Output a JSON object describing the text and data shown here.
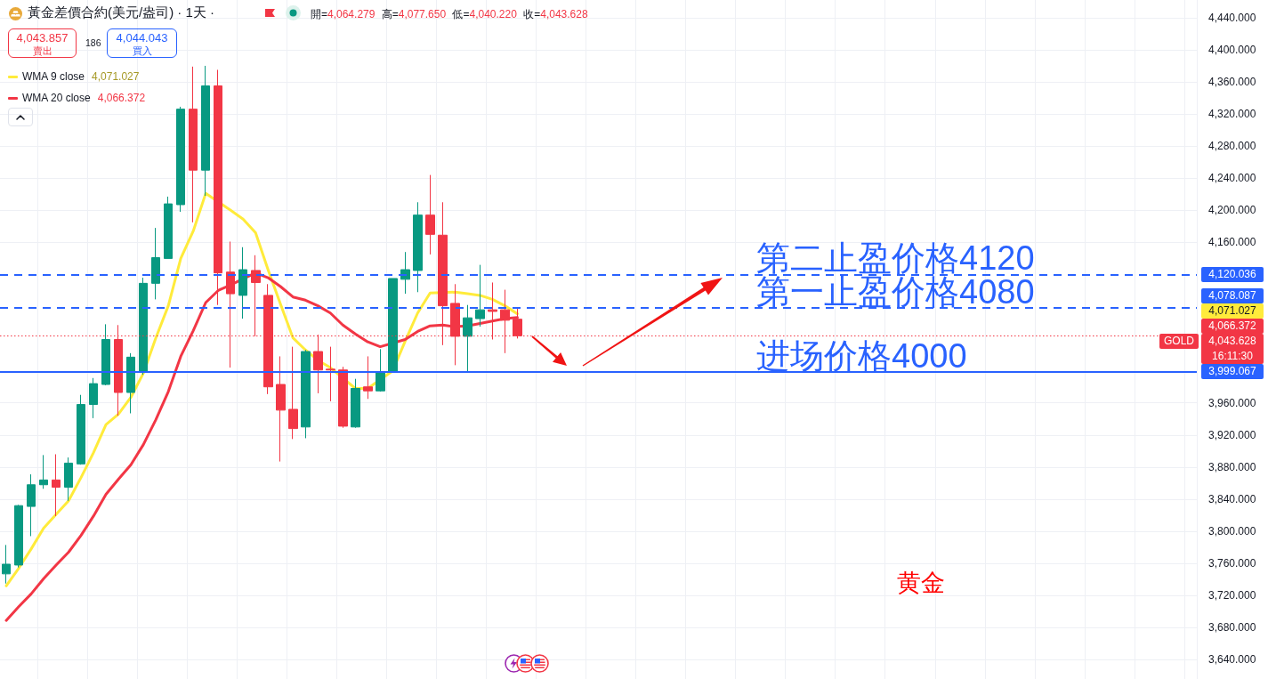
{
  "chart_data": {
    "type": "candlestick",
    "title": "黃金差價合約(美元/盎司) · 1天 ·",
    "categories": [
      null,
      null,
      null,
      null,
      null,
      null,
      null,
      null,
      null,
      null,
      null,
      null,
      null,
      null,
      null,
      null,
      null,
      null,
      null,
      null,
      null,
      null,
      null,
      null,
      null,
      null,
      null,
      null,
      null,
      null,
      null,
      null,
      null,
      null,
      null,
      null,
      null,
      null,
      null,
      null,
      null,
      null,
      null,
      null,
      null,
      null,
      null,
      null,
      null,
      null,
      null,
      null,
      null,
      null,
      null,
      null,
      null,
      null,
      null,
      null,
      null,
      null,
      null,
      null,
      null,
      null,
      null,
      null,
      null,
      null,
      null,
      null,
      null,
      null,
      null,
      null,
      null,
      null,
      null,
      null,
      null,
      null,
      null,
      null,
      null,
      null,
      null,
      null,
      null,
      null,
      null,
      null,
      null,
      null,
      null,
      null
    ],
    "ohlc": [
      [
        3747,
        3783,
        3735,
        3759
      ],
      [
        3758,
        3833,
        3755,
        3832
      ],
      [
        3831,
        3871,
        3794,
        3858
      ],
      [
        3858,
        3895,
        3853,
        3864
      ],
      [
        3864,
        3896,
        3819,
        3855
      ],
      [
        3855,
        3892,
        3838,
        3885
      ],
      [
        3884,
        3970,
        3883,
        3958
      ],
      [
        3958,
        3991,
        3941,
        3984
      ],
      [
        3983,
        4058,
        3982,
        4039
      ],
      [
        4039,
        4057,
        3944,
        3973
      ],
      [
        3973,
        4022,
        3947,
        4017
      ],
      [
        3999,
        4116,
        3995,
        4109
      ],
      [
        4109,
        4178,
        4089,
        4141
      ],
      [
        4140,
        4217,
        4140,
        4208
      ],
      [
        4207,
        4329,
        4198,
        4326
      ],
      [
        4326,
        4379,
        4185,
        4250
      ],
      [
        4250,
        4380,
        4218,
        4355
      ],
      [
        4355,
        4375,
        4082,
        4122
      ],
      [
        4123,
        4161,
        4004,
        4096
      ],
      [
        4094,
        4154,
        4065,
        4126
      ],
      [
        4125,
        4144,
        4043,
        4110
      ],
      [
        4094,
        4108,
        3971,
        3980
      ],
      [
        3983,
        4018,
        3887,
        3951
      ],
      [
        3952,
        4030,
        3915,
        3928
      ],
      [
        3930,
        4026,
        3916,
        4024
      ],
      [
        4024,
        4045,
        3972,
        4001
      ],
      [
        4002,
        4030,
        3962,
        4001
      ],
      [
        4001,
        4005,
        3929,
        3931
      ],
      [
        3930,
        3990,
        3929,
        3978
      ],
      [
        3980,
        4018,
        3965,
        3975
      ],
      [
        3975,
        4027,
        3974,
        3999
      ],
      [
        3999,
        4115,
        3999,
        4115
      ],
      [
        4114,
        4148,
        4096,
        4126
      ],
      [
        4125,
        4210,
        4098,
        4194
      ],
      [
        4194,
        4244,
        4145,
        4170
      ],
      [
        4169,
        4210,
        4032,
        4081
      ],
      [
        4084,
        4108,
        4007,
        4043
      ],
      [
        4043,
        4082,
        3998,
        4066
      ],
      [
        4065,
        4132,
        4055,
        4076
      ],
      [
        4076,
        4110,
        4039,
        4074
      ],
      [
        4076,
        4101,
        4022,
        4063
      ],
      [
        4064.279,
        4077.65,
        4040.22,
        4043.628
      ],
      null,
      null,
      null,
      null,
      null,
      null,
      null,
      null,
      null,
      null,
      null,
      null,
      null,
      null,
      null,
      null,
      null,
      null,
      null,
      null,
      null,
      null,
      null,
      null,
      null,
      null,
      null,
      null,
      null,
      null,
      null,
      null,
      null,
      null,
      null,
      null,
      null,
      null,
      null,
      null,
      null,
      null,
      null,
      null,
      null,
      null,
      null,
      null,
      null,
      null,
      null,
      null,
      null,
      null
    ],
    "colors": [
      "#089981",
      "#089981",
      "#089981",
      "#089981",
      "#f23645",
      "#089981",
      "#089981",
      "#089981",
      "#089981",
      "#f23645",
      "#089981",
      "#089981",
      "#089981",
      "#089981",
      "#089981",
      "#f23645",
      "#089981",
      "#f23645",
      "#f23645",
      "#089981",
      "#f23645",
      "#f23645",
      "#f23645",
      "#f23645",
      "#089981",
      "#f23645",
      "#f23645",
      "#f23645",
      "#089981",
      "#f23645",
      "#089981",
      "#089981",
      "#089981",
      "#089981",
      "#f23645",
      "#f23645",
      "#f23645",
      "#089981",
      "#089981",
      "#f23645",
      "#f23645",
      "#f23645",
      null,
      null,
      null,
      null,
      null,
      null,
      null,
      null,
      null,
      null,
      null,
      null,
      null,
      null,
      null,
      null,
      null,
      null,
      null,
      null,
      null,
      null,
      null,
      null,
      null,
      null,
      null,
      null,
      null,
      null,
      null,
      null,
      null,
      null,
      null,
      null,
      null,
      null,
      null,
      null,
      null,
      null,
      null,
      null,
      null,
      null,
      null,
      null,
      null,
      null,
      null,
      null,
      null,
      null
    ],
    "series": [
      {
        "name": "WMA 9 close",
        "type": "line",
        "color": "#ffeb3b",
        "values": [
          3732,
          3754,
          3778,
          3804,
          3821,
          3838,
          3867,
          3898,
          3933,
          3946,
          3967,
          3997,
          4041,
          4081,
          4140,
          4174,
          4221,
          null,
          4200,
          4189,
          4172,
          4126,
          4083,
          4041,
          4026,
          4013,
          4004,
          null,
          3978,
          3978,
          null,
          4000,
          4037,
          4072,
          4097,
          null,
          4098,
          4096,
          4094,
          4089,
          4081,
          4071.027,
          null,
          null,
          null,
          null,
          null,
          null,
          null,
          null,
          null,
          null,
          null,
          null,
          null,
          null,
          null,
          null,
          null,
          null,
          null,
          null,
          null,
          null,
          null,
          null,
          null,
          null,
          null,
          null,
          null,
          null,
          null,
          null,
          null,
          null,
          null,
          null,
          null,
          null,
          null,
          null,
          null,
          null,
          null,
          null,
          null,
          null,
          null,
          null,
          null,
          null,
          null,
          null,
          null,
          null
        ]
      },
      {
        "name": "WMA 20 close",
        "type": "line",
        "color": "#f23645",
        "values": [
          3689,
          3706,
          3722,
          3741,
          3758,
          3774,
          3795,
          3819,
          3846,
          3865,
          3883,
          3908,
          3939,
          3974,
          4018,
          4050,
          4085,
          4100,
          4107,
          null,
          4122,
          4116,
          4105,
          4092,
          4088,
          4081,
          4072,
          4057,
          4046,
          4036,
          4030,
          null,
          4039,
          4049,
          4056,
          4057,
          4055,
          4056,
          4059,
          4062,
          4065,
          4066.372,
          null,
          null,
          null,
          null,
          null,
          null,
          null,
          null,
          null,
          null,
          null,
          null,
          null,
          null,
          null,
          null,
          null,
          null,
          null,
          null,
          null,
          null,
          null,
          null,
          null,
          null,
          null,
          null,
          null,
          null,
          null,
          null,
          null,
          null,
          null,
          null,
          null,
          null,
          null,
          null,
          null,
          null,
          null,
          null,
          null,
          null,
          null,
          null,
          null,
          null,
          null,
          null,
          null,
          null
        ]
      }
    ],
    "ylim": [
      3616,
      4462
    ],
    "yticks": [
      {
        "value": 3640,
        "label": "3,640.000"
      },
      {
        "value": 3680,
        "label": "3,680.000"
      },
      {
        "value": 3720,
        "label": "3,720.000"
      },
      {
        "value": 3760,
        "label": "3,760.000"
      },
      {
        "value": 3800,
        "label": "3,800.000"
      },
      {
        "value": 3840,
        "label": "3,840.000"
      },
      {
        "value": 3880,
        "label": "3,880.000"
      },
      {
        "value": 3920,
        "label": "3,920.000"
      },
      {
        "value": 3960,
        "label": "3,960.000"
      },
      {
        "value": 4160,
        "label": "4,160.000"
      },
      {
        "value": 4200,
        "label": "4,200.000"
      },
      {
        "value": 4240,
        "label": "4,240.000"
      },
      {
        "value": 4280,
        "label": "4,280.000"
      },
      {
        "value": 4320,
        "label": "4,320.000"
      },
      {
        "value": 4360,
        "label": "4,360.000"
      },
      {
        "value": 4400,
        "label": "4,400.000"
      },
      {
        "value": 4440,
        "label": "4,440.000"
      }
    ],
    "ref_lines": [
      {
        "axis": "y",
        "value": 4120.036,
        "label": "第二止盈价格4120",
        "color": "#2962ff",
        "line_style": "dashed"
      },
      {
        "axis": "y",
        "value": 4078.087,
        "label": "第一止盈价格4080",
        "color": "#2962ff",
        "line_style": "dashed"
      },
      {
        "axis": "y",
        "value": 3999.067,
        "label": "进场价格4000",
        "color": "#2962ff",
        "line_style": "solid"
      },
      {
        "axis": "y",
        "value": 4043.628,
        "label": "GOLD",
        "color": "#f23645",
        "line_style": "dotted"
      }
    ],
    "annotations": [
      "開=4,064.279 高=4,077.650 低=4,040.220 收=4,043.628",
      "4,043.857",
      "賣出",
      "186",
      "4,044.043",
      "買入",
      "4,071.027",
      "4,066.372",
      "4,120.036",
      "4,078.087",
      "4,071.027",
      "4,066.372",
      "4,043.628",
      "3,999.067",
      "16:11:30",
      "黄金"
    ],
    "grid": true,
    "legend": "top left",
    "marker": "none",
    "tick_labels": "y"
  }
}
